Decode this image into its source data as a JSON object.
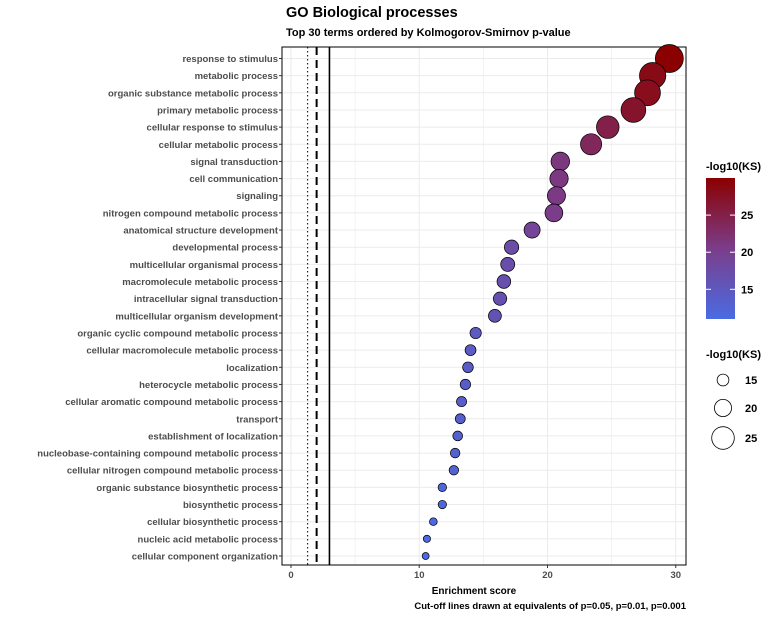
{
  "title": "GO Biological processes",
  "subtitle": "Top 30 terms ordered by Kolmogorov-Smirnov p-value",
  "caption": "Cut-off lines drawn at equivalents of p=0.05, p=0.01, p=0.001",
  "chart_data": {
    "type": "scatter",
    "xlabel": "Enrichment score",
    "ylabel": "",
    "xlim": [
      -0.7,
      30.8
    ],
    "xticks": [
      0,
      10,
      20,
      30
    ],
    "grid": true,
    "cutoff_lines": [
      1.3,
      2.0,
      3.0
    ],
    "color_scale": {
      "title": "-log10(KS)",
      "low": "#4a6be3",
      "mid": "#7b3d8a",
      "high": "#8b0000",
      "range": [
        11,
        30
      ],
      "ticks": [
        15,
        20,
        25
      ]
    },
    "size_scale": {
      "title": "-log10(KS)",
      "ticks": [
        15,
        20,
        25
      ]
    },
    "legend_position": "right",
    "terms": [
      {
        "term": "response to stimulus",
        "score": 29.5,
        "ks": 30
      },
      {
        "term": "metabolic process",
        "score": 28.2,
        "ks": 28.5
      },
      {
        "term": "organic substance metabolic process",
        "score": 27.8,
        "ks": 28
      },
      {
        "term": "primary metabolic process",
        "score": 26.7,
        "ks": 27
      },
      {
        "term": "cellular response to stimulus",
        "score": 24.7,
        "ks": 25
      },
      {
        "term": "cellular metabolic process",
        "score": 23.4,
        "ks": 23.7
      },
      {
        "term": "signal transduction",
        "score": 21.0,
        "ks": 21.3
      },
      {
        "term": "cell communication",
        "score": 20.9,
        "ks": 21.1
      },
      {
        "term": "signaling",
        "score": 20.7,
        "ks": 20.9
      },
      {
        "term": "nitrogen compound metabolic process",
        "score": 20.5,
        "ks": 20.6
      },
      {
        "term": "anatomical structure development",
        "score": 18.8,
        "ks": 19
      },
      {
        "term": "developmental process",
        "score": 17.2,
        "ks": 17.4
      },
      {
        "term": "multicellular organismal process",
        "score": 16.9,
        "ks": 17.1
      },
      {
        "term": "macromolecule metabolic process",
        "score": 16.6,
        "ks": 16.8
      },
      {
        "term": "intracellular signal transduction",
        "score": 16.3,
        "ks": 16.5
      },
      {
        "term": "multicellular organism development",
        "score": 15.9,
        "ks": 16.1
      },
      {
        "term": "organic cyclic compound metabolic process",
        "score": 14.4,
        "ks": 14.6
      },
      {
        "term": "cellular macromolecule metabolic process",
        "score": 14.0,
        "ks": 14.2
      },
      {
        "term": "localization",
        "score": 13.8,
        "ks": 14
      },
      {
        "term": "heterocycle metabolic process",
        "score": 13.6,
        "ks": 13.8
      },
      {
        "term": "cellular aromatic compound metabolic process",
        "score": 13.3,
        "ks": 13.5
      },
      {
        "term": "transport",
        "score": 13.2,
        "ks": 13.4
      },
      {
        "term": "establishment of localization",
        "score": 13.0,
        "ks": 13.2
      },
      {
        "term": "nucleobase-containing compound metabolic process",
        "score": 12.8,
        "ks": 13
      },
      {
        "term": "cellular nitrogen compound metabolic process",
        "score": 12.7,
        "ks": 12.9
      },
      {
        "term": "organic substance biosynthetic process",
        "score": 11.8,
        "ks": 12
      },
      {
        "term": "biosynthetic process",
        "score": 11.8,
        "ks": 11.9
      },
      {
        "term": "cellular biosynthetic process",
        "score": 11.1,
        "ks": 11.3
      },
      {
        "term": "nucleic acid metabolic process",
        "score": 10.6,
        "ks": 10.8
      },
      {
        "term": "cellular component organization",
        "score": 10.5,
        "ks": 10.6
      }
    ]
  }
}
